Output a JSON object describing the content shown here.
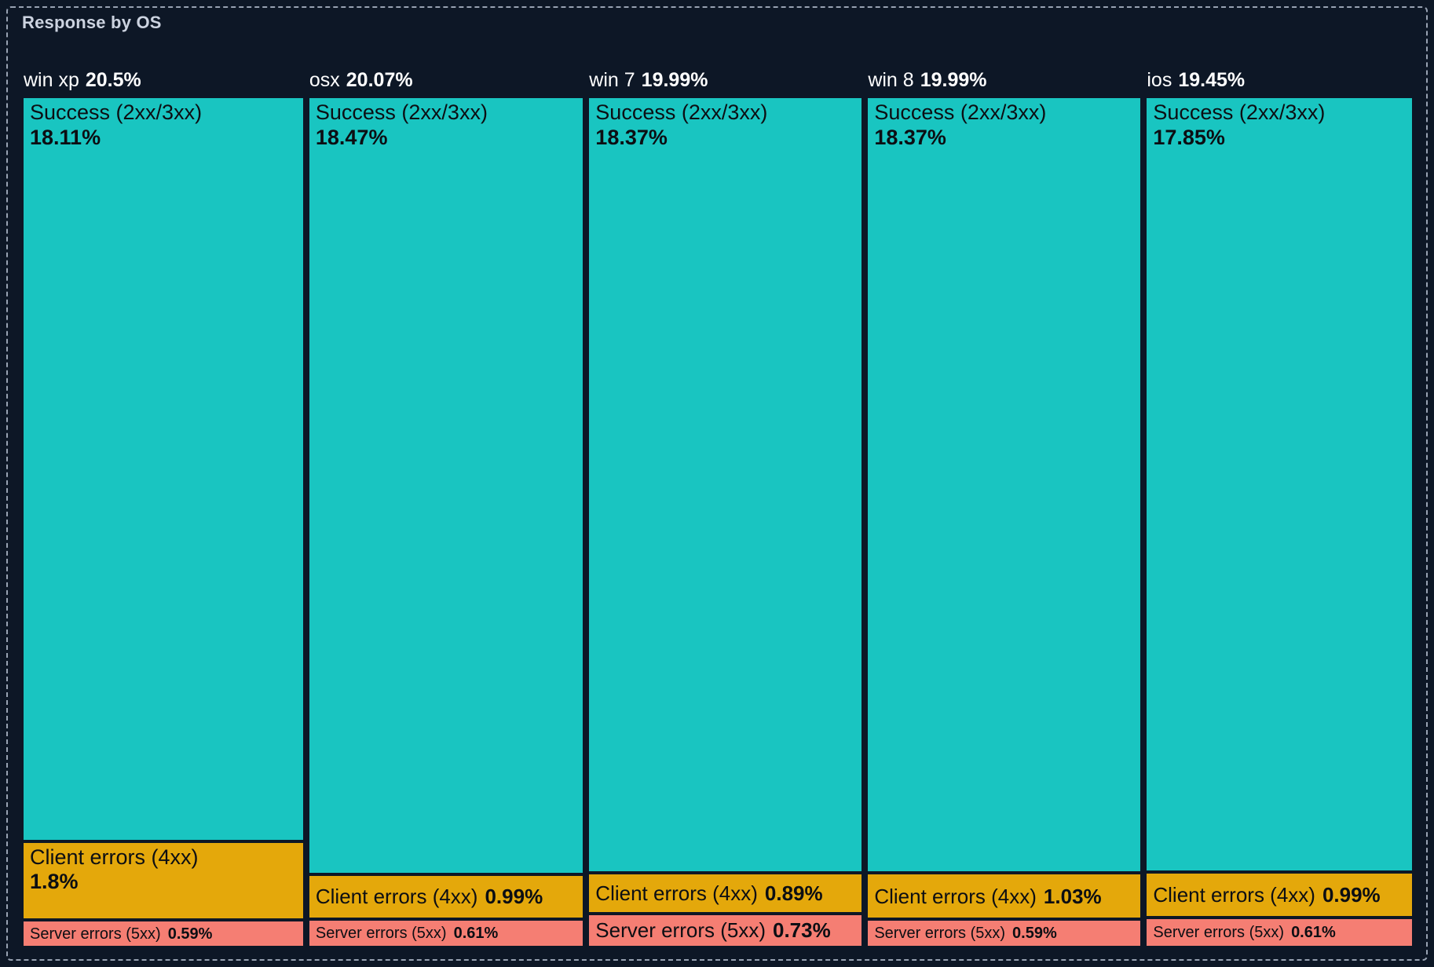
{
  "panel": {
    "title": "Response by OS"
  },
  "chart_data": {
    "type": "treemap",
    "title": "Response by OS",
    "orientation": "columns",
    "unit": "%",
    "colors": {
      "background": "#0d1726",
      "border_dashed": "#98a2b2",
      "title_text": "#ccd3e0",
      "group_label_text": "#ffffff",
      "segment_text": "#0c0e13",
      "success": "#19c5c1",
      "client_errors": "#e4a80b",
      "server_errors": "#f57e73"
    },
    "groups": [
      {
        "name": "win xp",
        "total_pct": 20.5,
        "total_label": "20.5%",
        "segments": [
          {
            "name": "Success (2xx/3xx)",
            "pct": 18.11,
            "label": "18.11%",
            "category": "success"
          },
          {
            "name": "Client errors (4xx)",
            "pct": 1.8,
            "label": "1.8%",
            "category": "client_errors"
          },
          {
            "name": "Server errors (5xx)",
            "pct": 0.59,
            "label": "0.59%",
            "category": "server_errors"
          }
        ]
      },
      {
        "name": "osx",
        "total_pct": 20.07,
        "total_label": "20.07%",
        "segments": [
          {
            "name": "Success (2xx/3xx)",
            "pct": 18.47,
            "label": "18.47%",
            "category": "success"
          },
          {
            "name": "Client errors (4xx)",
            "pct": 0.99,
            "label": "0.99%",
            "category": "client_errors"
          },
          {
            "name": "Server errors (5xx)",
            "pct": 0.61,
            "label": "0.61%",
            "category": "server_errors"
          }
        ]
      },
      {
        "name": "win 7",
        "total_pct": 19.99,
        "total_label": "19.99%",
        "segments": [
          {
            "name": "Success (2xx/3xx)",
            "pct": 18.37,
            "label": "18.37%",
            "category": "success"
          },
          {
            "name": "Client errors (4xx)",
            "pct": 0.89,
            "label": "0.89%",
            "category": "client_errors"
          },
          {
            "name": "Server errors (5xx)",
            "pct": 0.73,
            "label": "0.73%",
            "category": "server_errors"
          }
        ]
      },
      {
        "name": "win 8",
        "total_pct": 19.99,
        "total_label": "19.99%",
        "segments": [
          {
            "name": "Success (2xx/3xx)",
            "pct": 18.37,
            "label": "18.37%",
            "category": "success"
          },
          {
            "name": "Client errors (4xx)",
            "pct": 1.03,
            "label": "1.03%",
            "category": "client_errors"
          },
          {
            "name": "Server errors (5xx)",
            "pct": 0.59,
            "label": "0.59%",
            "category": "server_errors"
          }
        ]
      },
      {
        "name": "ios",
        "total_pct": 19.45,
        "total_label": "19.45%",
        "segments": [
          {
            "name": "Success (2xx/3xx)",
            "pct": 17.85,
            "label": "17.85%",
            "category": "success"
          },
          {
            "name": "Client errors (4xx)",
            "pct": 0.99,
            "label": "0.99%",
            "category": "client_errors"
          },
          {
            "name": "Server errors (5xx)",
            "pct": 0.61,
            "label": "0.61%",
            "category": "server_errors"
          }
        ]
      }
    ]
  }
}
